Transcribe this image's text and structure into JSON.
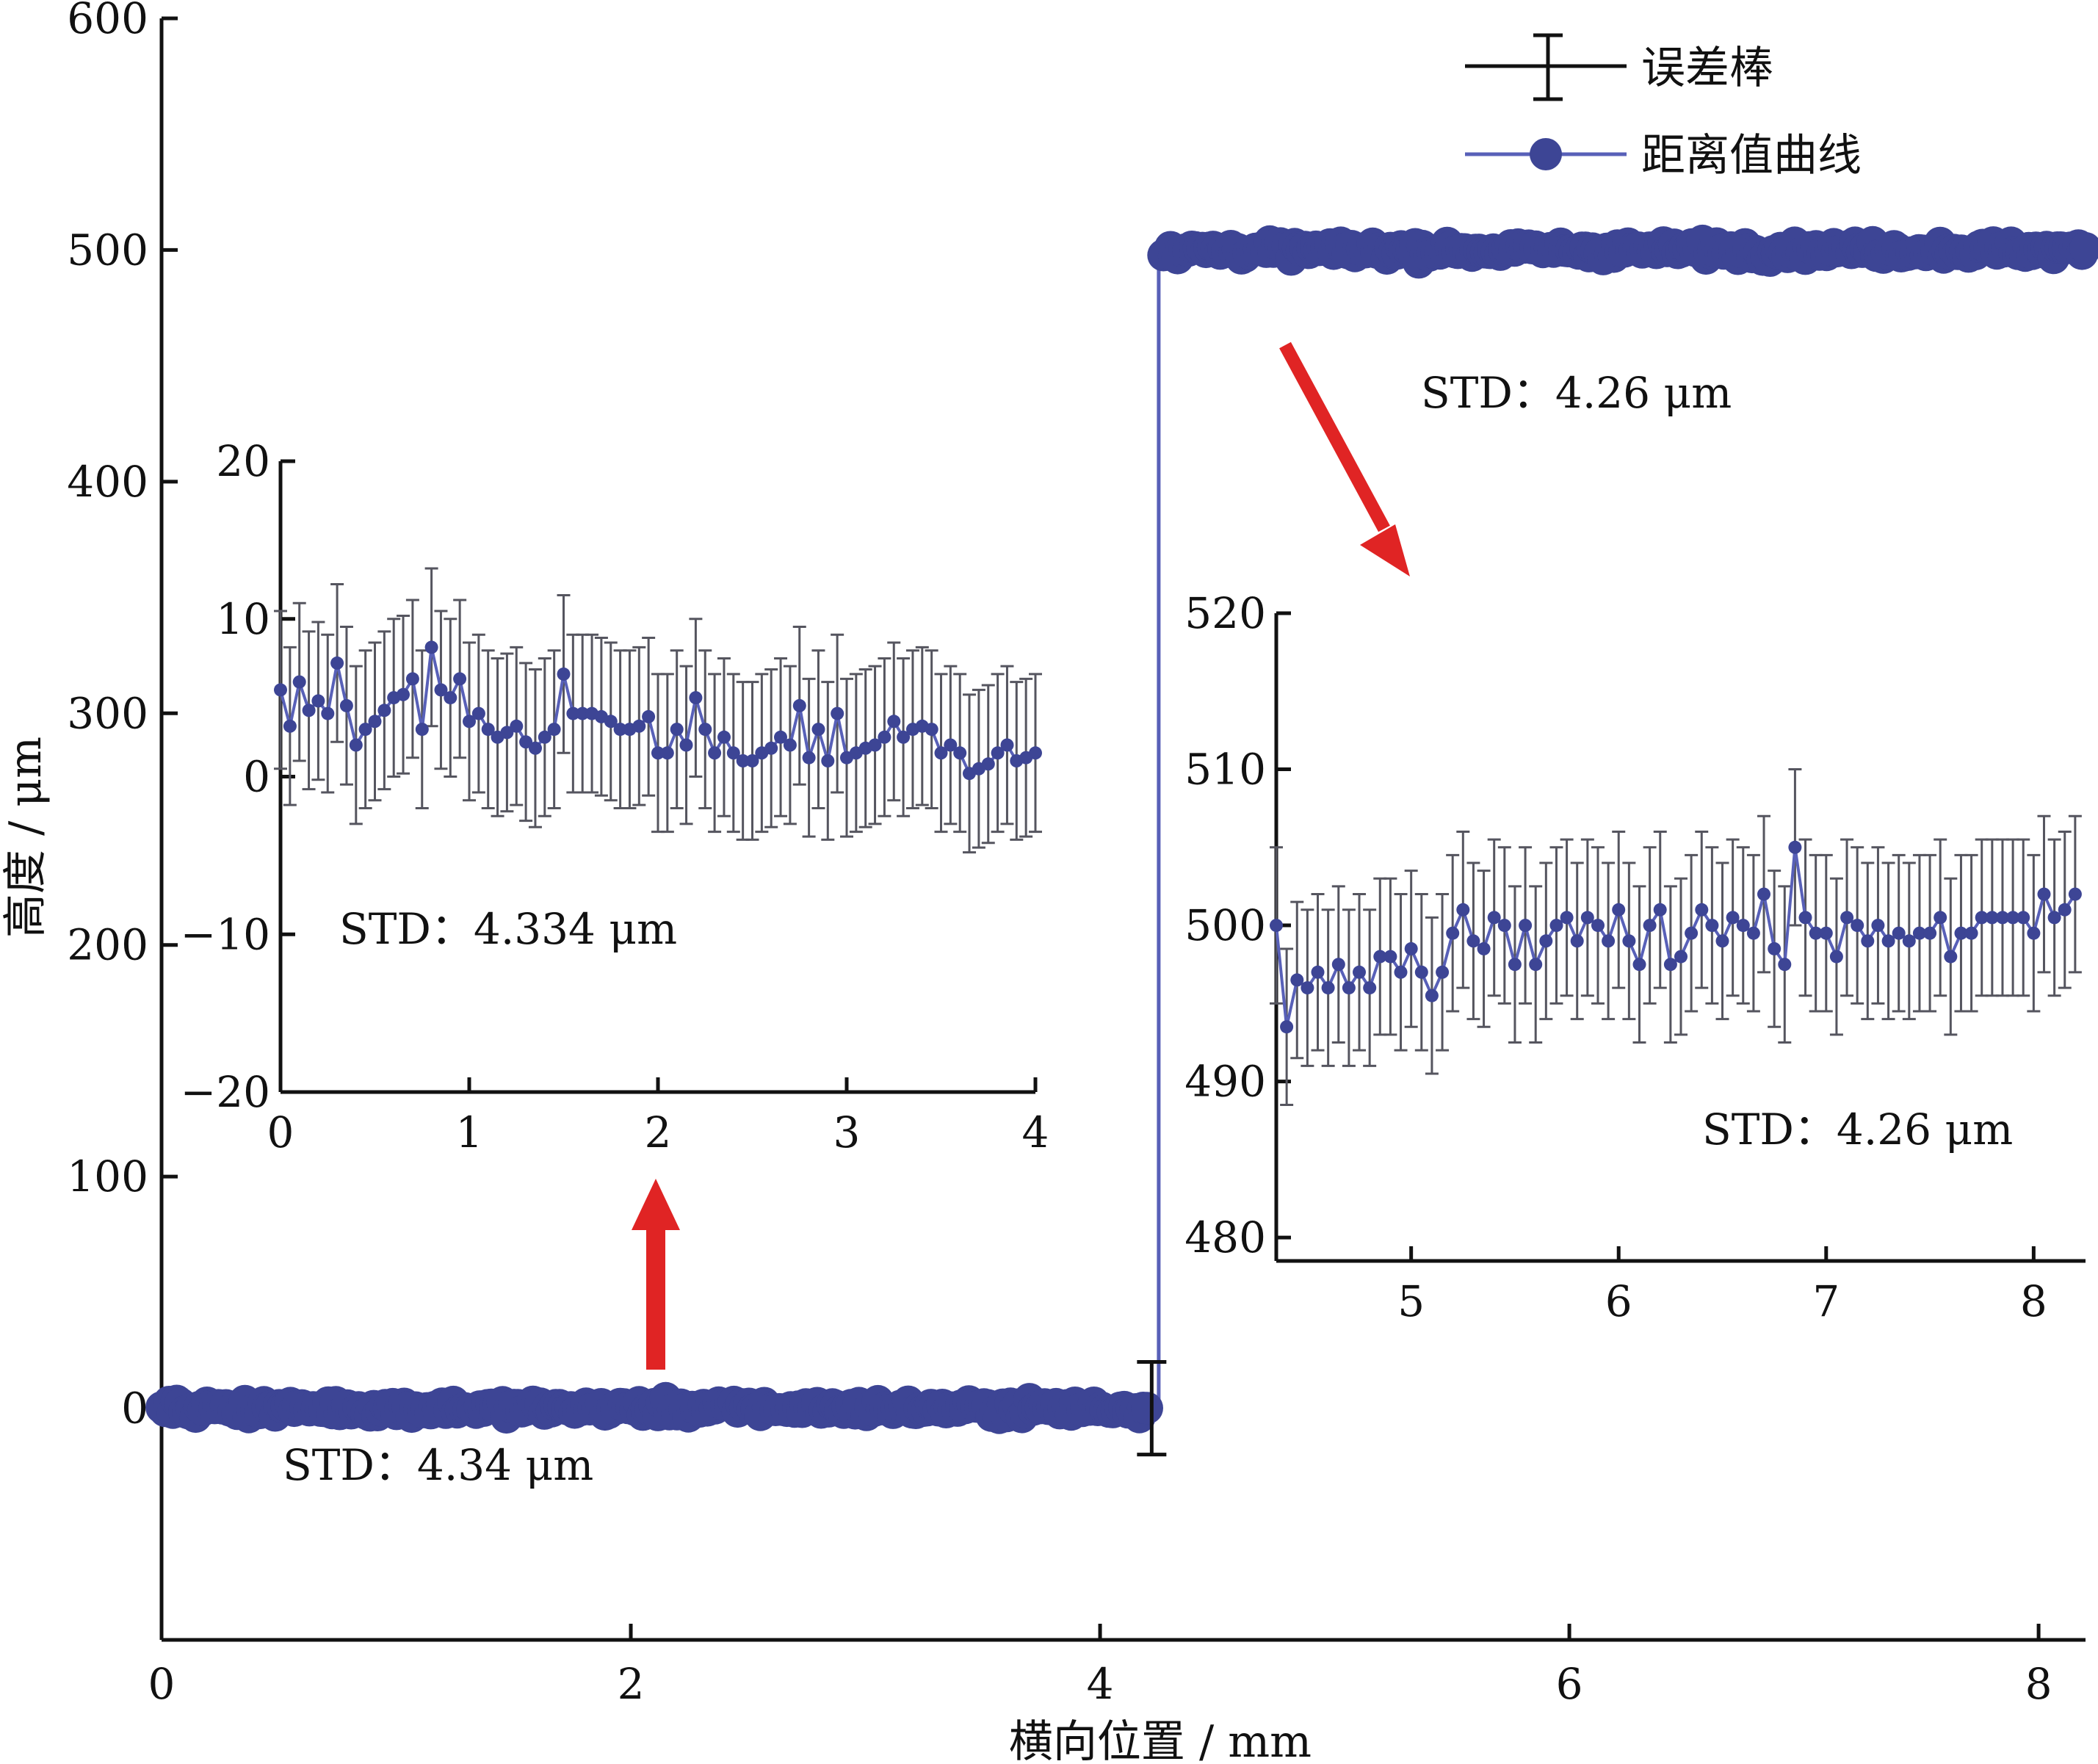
{
  "chart_data": [
    {
      "id": "main",
      "type": "line",
      "xlabel": "横向位置 / mm",
      "ylabel": "高度 / μm",
      "xlim": [
        0,
        8.2
      ],
      "ylim": [
        -100,
        600
      ],
      "xticks": [
        0,
        2,
        4,
        6,
        8
      ],
      "yticks": [
        0,
        100,
        200,
        300,
        400,
        500,
        600
      ],
      "xtick_labels": [
        "0",
        "2",
        "4",
        "6",
        "8"
      ],
      "ytick_labels": [
        "0",
        "100",
        "200",
        "300",
        "400",
        "500",
        "600"
      ],
      "grid": false,
      "legend_position": "top-right",
      "legend": [
        {
          "label": "误差棒",
          "marker": "errorbar"
        },
        {
          "label": "距离值曲线",
          "marker": "circle-line"
        }
      ],
      "series": [
        {
          "name": "距离值曲线",
          "segments": [
            {
              "x_range": [
                0,
                4.2
              ],
              "y": 0
            },
            {
              "x_range": [
                4.27,
                8.2
              ],
              "y": 500
            }
          ],
          "step_x": 4.25,
          "noise_std": [
            4.34,
            4.26
          ]
        }
      ],
      "errorbar_annotation": {
        "x": 4.22,
        "y": 0,
        "err": 20
      },
      "annotations": [
        {
          "text": "STD：4.34 μm",
          "near": "lower plateau"
        },
        {
          "text": "STD：4.26 μm",
          "near": "upper plateau"
        }
      ]
    },
    {
      "id": "inset_left",
      "type": "line",
      "xlim": [
        0,
        4
      ],
      "ylim": [
        -20,
        20
      ],
      "xticks": [
        0,
        1,
        2,
        3,
        4
      ],
      "yticks": [
        -20,
        -10,
        0,
        10,
        20
      ],
      "xtick_labels": [
        "0",
        "1",
        "2",
        "3",
        "4"
      ],
      "ytick_labels": [
        "−20",
        "−10",
        "0",
        "10",
        "20"
      ],
      "annotation": "STD：4.334 μm",
      "x": [
        0.0,
        0.05,
        0.1,
        0.15,
        0.2,
        0.25,
        0.3,
        0.35,
        0.4,
        0.45,
        0.5,
        0.55,
        0.6,
        0.65,
        0.7,
        0.75,
        0.8,
        0.85,
        0.9,
        0.95,
        1.0,
        1.05,
        1.1,
        1.15,
        1.2,
        1.25,
        1.3,
        1.35,
        1.4,
        1.45,
        1.5,
        1.55,
        1.6,
        1.65,
        1.7,
        1.75,
        1.8,
        1.85,
        1.9,
        1.95,
        2.0,
        2.05,
        2.1,
        2.15,
        2.2,
        2.25,
        2.3,
        2.35,
        2.4,
        2.45,
        2.5,
        2.55,
        2.6,
        2.65,
        2.7,
        2.75,
        2.8,
        2.85,
        2.9,
        2.95,
        3.0,
        3.05,
        3.1,
        3.15,
        3.2,
        3.25,
        3.3,
        3.35,
        3.4,
        3.45,
        3.5,
        3.55,
        3.6,
        3.65,
        3.7,
        3.75,
        3.8,
        3.85,
        3.9,
        3.95,
        4.0
      ],
      "y": [
        5.5,
        3.2,
        6.0,
        4.2,
        4.8,
        4.0,
        7.2,
        4.5,
        2.0,
        3.0,
        3.5,
        4.2,
        5.0,
        5.2,
        6.2,
        3.0,
        8.2,
        5.5,
        5.0,
        6.2,
        3.5,
        4.0,
        3.0,
        2.5,
        2.8,
        3.2,
        2.2,
        1.8,
        2.5,
        3.0,
        6.5,
        4.0,
        4.0,
        4.0,
        3.8,
        3.5,
        3.0,
        3.0,
        3.2,
        3.8,
        1.5,
        1.5,
        3.0,
        2.0,
        5.0,
        3.0,
        1.5,
        2.5,
        1.5,
        1.0,
        1.0,
        1.5,
        1.8,
        2.5,
        2.0,
        4.5,
        1.2,
        3.0,
        1.0,
        4.0,
        1.2,
        1.5,
        1.8,
        2.0,
        2.5,
        3.5,
        2.5,
        3.0,
        3.2,
        3.0,
        1.5,
        2.0,
        1.5,
        0.2,
        0.5,
        0.8,
        1.5,
        2.0,
        1.0,
        1.2,
        1.5
      ],
      "err": 5.0
    },
    {
      "id": "inset_right",
      "type": "line",
      "xlim": [
        4.35,
        8.25
      ],
      "ylim": [
        478.5,
        520
      ],
      "xticks": [
        5,
        6,
        7,
        8
      ],
      "yticks": [
        480,
        490,
        500,
        510,
        520
      ],
      "xtick_labels": [
        "5",
        "6",
        "7",
        "8"
      ],
      "ytick_labels": [
        "480",
        "490",
        "500",
        "510",
        "520"
      ],
      "annotation": "STD：4.26 μm",
      "x": [
        4.35,
        4.4,
        4.45,
        4.5,
        4.55,
        4.6,
        4.65,
        4.7,
        4.75,
        4.8,
        4.85,
        4.9,
        4.95,
        5.0,
        5.05,
        5.1,
        5.15,
        5.2,
        5.25,
        5.3,
        5.35,
        5.4,
        5.45,
        5.5,
        5.55,
        5.6,
        5.65,
        5.7,
        5.75,
        5.8,
        5.85,
        5.9,
        5.95,
        6.0,
        6.05,
        6.1,
        6.15,
        6.2,
        6.25,
        6.3,
        6.35,
        6.4,
        6.45,
        6.5,
        6.55,
        6.6,
        6.65,
        6.7,
        6.75,
        6.8,
        6.85,
        6.9,
        6.95,
        7.0,
        7.05,
        7.1,
        7.15,
        7.2,
        7.25,
        7.3,
        7.35,
        7.4,
        7.45,
        7.5,
        7.55,
        7.6,
        7.65,
        7.7,
        7.75,
        7.8,
        7.85,
        7.9,
        7.95,
        8.0,
        8.05,
        8.1,
        8.15,
        8.2
      ],
      "y": [
        500.0,
        493.5,
        496.5,
        496.0,
        497.0,
        496.0,
        497.5,
        496.0,
        497.0,
        496.0,
        498.0,
        498.0,
        497.0,
        498.5,
        497.0,
        495.5,
        497.0,
        499.5,
        501.0,
        499.0,
        498.5,
        500.5,
        500.0,
        497.5,
        500.0,
        497.5,
        499.0,
        500.0,
        500.5,
        499.0,
        500.5,
        500.0,
        499.0,
        501.0,
        499.0,
        497.5,
        500.0,
        501.0,
        497.5,
        498.0,
        499.5,
        501.0,
        500.0,
        499.0,
        500.5,
        500.0,
        499.5,
        502.0,
        498.5,
        497.5,
        505.0,
        500.5,
        499.5,
        499.5,
        498.0,
        500.5,
        500.0,
        499.0,
        500.0,
        499.0,
        499.5,
        499.0,
        499.5,
        499.5,
        500.5,
        498.0,
        499.5,
        499.5,
        500.5,
        500.5,
        500.5,
        500.5,
        500.5,
        499.5,
        502.0,
        500.5,
        501.0,
        502.0
      ],
      "err": 5.0
    }
  ],
  "colors": {
    "series": "#3d4595",
    "series_line": "#5860b8",
    "errorbar": "#55555f",
    "arrow": "#e02424",
    "axis": "#111111"
  },
  "arrows": [
    {
      "from": "upper plateau",
      "to": "inset_right",
      "direction": "down-right"
    },
    {
      "from": "lower plateau",
      "to": "inset_left",
      "direction": "up"
    }
  ]
}
